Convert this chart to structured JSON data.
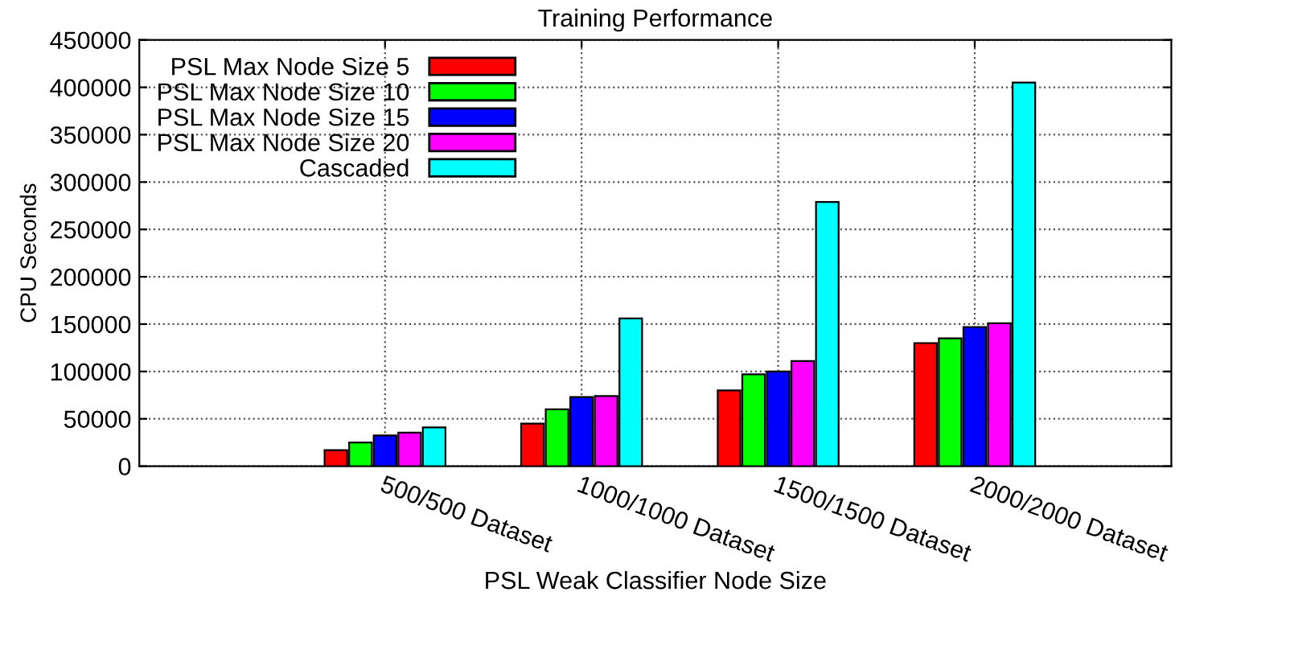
{
  "chart_data": {
    "type": "bar",
    "title": "Training Performance",
    "xlabel": "PSL Weak Classifier Node Size",
    "ylabel": "CPU Seconds",
    "categories": [
      "500/500 Dataset",
      "1000/1000 Dataset",
      "1500/1500 Dataset",
      "2000/2000 Dataset"
    ],
    "series": [
      {
        "name": "PSL Max Node Size 5",
        "color": "#ff0000",
        "values": [
          17000,
          45000,
          80000,
          130000
        ]
      },
      {
        "name": "PSL Max Node Size 10",
        "color": "#00ff00",
        "values": [
          25000,
          60000,
          97000,
          135000
        ]
      },
      {
        "name": "PSL Max Node Size 15",
        "color": "#0000ff",
        "values": [
          32500,
          73000,
          100000,
          147000
        ]
      },
      {
        "name": "PSL Max Node Size 20",
        "color": "#ff00ff",
        "values": [
          35500,
          74000,
          111000,
          151000
        ]
      },
      {
        "name": "Cascaded",
        "color": "#00ffff",
        "values": [
          41000,
          156000,
          279000,
          405000
        ]
      }
    ],
    "ylim": [
      0,
      450000
    ],
    "yticks": [
      0,
      50000,
      100000,
      150000,
      200000,
      250000,
      300000,
      350000,
      400000,
      450000
    ],
    "grid": true,
    "legend": "top left"
  }
}
